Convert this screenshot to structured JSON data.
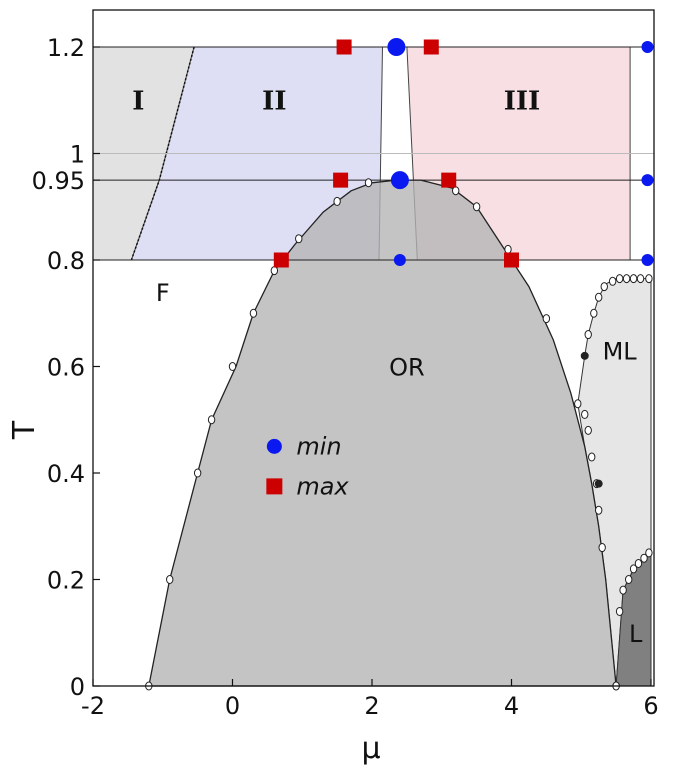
{
  "chart_data": {
    "type": "scatter",
    "title": "",
    "xlabel": "μ",
    "ylabel": "T",
    "xlim": [
      -2,
      6
    ],
    "ylim": [
      0,
      1.25
    ],
    "x_ticks": [
      "-2",
      "0",
      "2",
      "4",
      "6"
    ],
    "x_tick_values": [
      -2,
      0,
      2,
      4,
      6
    ],
    "y_ticks": [
      "0",
      "0.2",
      "0.4",
      "0.6",
      "0.8",
      "0.95",
      "1",
      "1.2"
    ],
    "y_tick_values": [
      0,
      0.2,
      0.4,
      0.6,
      0.8,
      0.95,
      1.0,
      1.2
    ],
    "colors": {
      "or_phase": "#b3b3b3",
      "ml_phase": "#e6e6e6",
      "l_phase": "#808080",
      "region_I": "#e0e0e0",
      "region_II": "#dcdcf4",
      "region_III": "#f7dde2",
      "min_marker": "#0a19f0",
      "max_marker": "#cc0000"
    },
    "phase_labels": [
      {
        "text": "F",
        "x": -1.0,
        "y": 0.74
      },
      {
        "text": "OR",
        "x": 2.5,
        "y": 0.6
      },
      {
        "text": "ML",
        "x": 5.55,
        "y": 0.63
      },
      {
        "text": "L",
        "x": 5.78,
        "y": 0.1
      }
    ],
    "region_labels": [
      {
        "text": "I",
        "x": -1.35,
        "y": 1.1
      },
      {
        "text": "II",
        "x": 0.6,
        "y": 1.1
      },
      {
        "text": "III",
        "x": 4.15,
        "y": 1.1
      }
    ],
    "regions": [
      {
        "name": "I",
        "polygon": [
          [
            -2,
            0.8
          ],
          [
            -1.45,
            0.8
          ],
          [
            -1.05,
            0.95
          ],
          [
            -0.55,
            1.2
          ],
          [
            -2,
            1.2
          ]
        ]
      },
      {
        "name": "II",
        "polygon": [
          [
            -1.45,
            0.8
          ],
          [
            -1.05,
            0.95
          ],
          [
            -0.55,
            1.2
          ],
          [
            2.15,
            1.2
          ],
          [
            2.1,
            0.8
          ]
        ]
      },
      {
        "name": "III",
        "polygon": [
          [
            2.5,
            1.2
          ],
          [
            5.7,
            1.2
          ],
          [
            5.7,
            0.8
          ],
          [
            2.65,
            0.8
          ]
        ]
      }
    ],
    "or_boundary": [
      [
        -1.2,
        0.0
      ],
      [
        -0.9,
        0.2
      ],
      [
        -0.5,
        0.4
      ],
      [
        -0.3,
        0.5
      ],
      [
        0.05,
        0.6
      ],
      [
        0.3,
        0.7
      ],
      [
        0.6,
        0.78
      ],
      [
        0.9,
        0.83
      ],
      [
        1.3,
        0.89
      ],
      [
        1.7,
        0.93
      ],
      [
        2.0,
        0.945
      ],
      [
        2.35,
        0.95
      ],
      [
        2.7,
        0.95
      ],
      [
        3.15,
        0.935
      ],
      [
        3.5,
        0.9
      ],
      [
        3.9,
        0.82
      ],
      [
        4.25,
        0.75
      ],
      [
        4.6,
        0.65
      ],
      [
        4.85,
        0.55
      ],
      [
        5.05,
        0.45
      ],
      [
        5.15,
        0.38
      ],
      [
        5.25,
        0.3
      ],
      [
        5.35,
        0.2
      ],
      [
        5.5,
        0.0
      ]
    ],
    "or_boundary_markers": [
      [
        -1.2,
        0.0
      ],
      [
        -0.9,
        0.2
      ],
      [
        -0.5,
        0.4
      ],
      [
        -0.3,
        0.5
      ],
      [
        0.0,
        0.6
      ],
      [
        0.3,
        0.7
      ],
      [
        0.6,
        0.78
      ],
      [
        0.95,
        0.84
      ],
      [
        1.5,
        0.91
      ],
      [
        1.95,
        0.945
      ],
      [
        3.2,
        0.93
      ],
      [
        3.5,
        0.9
      ],
      [
        3.95,
        0.82
      ],
      [
        4.5,
        0.69
      ],
      [
        4.95,
        0.53
      ],
      [
        5.05,
        0.51
      ],
      [
        5.1,
        0.48
      ],
      [
        5.15,
        0.43
      ],
      [
        5.22,
        0.38
      ],
      [
        5.25,
        0.33
      ],
      [
        5.3,
        0.26
      ],
      [
        5.5,
        0.0
      ]
    ],
    "ml_boundary_markers": [
      [
        5.1,
        0.66
      ],
      [
        5.18,
        0.7
      ],
      [
        5.25,
        0.73
      ],
      [
        5.33,
        0.75
      ],
      [
        5.45,
        0.76
      ],
      [
        5.55,
        0.765
      ],
      [
        5.65,
        0.765
      ],
      [
        5.75,
        0.765
      ],
      [
        5.85,
        0.765
      ],
      [
        5.97,
        0.765
      ]
    ],
    "l_boundary_markers": [
      [
        5.5,
        0.0
      ],
      [
        5.55,
        0.14
      ],
      [
        5.6,
        0.18
      ],
      [
        5.68,
        0.2
      ],
      [
        5.75,
        0.22
      ],
      [
        5.82,
        0.23
      ],
      [
        5.9,
        0.24
      ],
      [
        5.97,
        0.25
      ]
    ],
    "critical_points": [
      [
        5.05,
        0.62
      ],
      [
        5.25,
        0.38
      ]
    ],
    "guide_lines_y": [
      0.8,
      0.95,
      1.2
    ],
    "series": [
      {
        "name": "min",
        "marker": "circle",
        "points": [
          [
            2.35,
            1.2
          ],
          [
            2.4,
            0.95
          ],
          [
            2.4,
            0.8
          ],
          [
            5.95,
            1.2
          ],
          [
            5.95,
            0.95
          ],
          [
            5.95,
            0.8
          ]
        ],
        "large_points": [
          [
            2.35,
            1.2
          ],
          [
            2.4,
            0.95
          ]
        ]
      },
      {
        "name": "max",
        "marker": "square",
        "points": [
          [
            1.6,
            1.2
          ],
          [
            2.85,
            1.2
          ],
          [
            1.55,
            0.95
          ],
          [
            3.1,
            0.95
          ],
          [
            0.7,
            0.8
          ],
          [
            4.0,
            0.8
          ]
        ]
      }
    ],
    "legend": {
      "position": "inside-lower-left",
      "x": 0.6,
      "y": 0.45
    }
  }
}
